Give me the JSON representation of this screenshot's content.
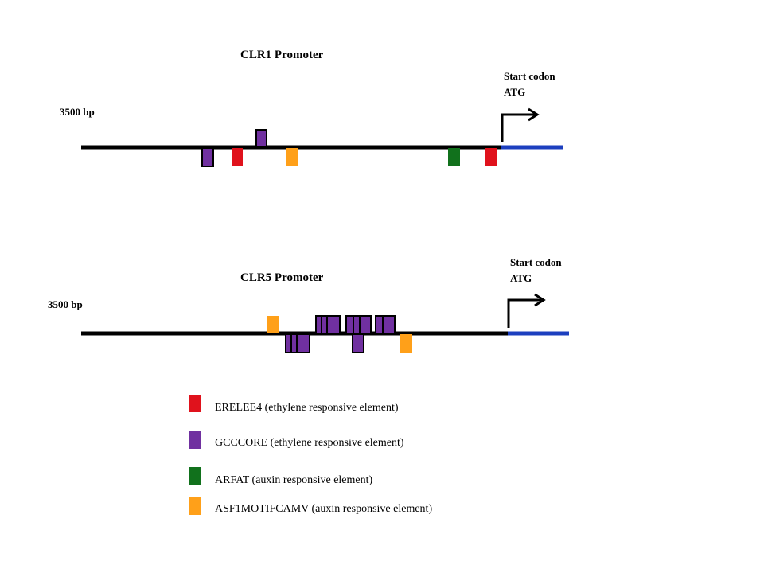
{
  "colors": {
    "line": "#000000",
    "gene": "#1c3fbf",
    "ERELEE4": "#e0121c",
    "GCCCORE": "#7030a0",
    "ARFAT": "#11711c",
    "ASF1MOTIFCAMV": "#ffa019"
  },
  "clr1": {
    "title": "CLR1 Promoter",
    "length_label": "3500 bp",
    "start_codon_label": "Start codon",
    "atg_label": "ATG"
  },
  "clr5": {
    "title": "CLR5 Promoter",
    "length_label": "3500 bp",
    "start_codon_label": "Start codon",
    "atg_label": "ATG"
  },
  "legend": [
    {
      "key": "ERELEE4",
      "label": "ERELEE4 (ethylene responsive element)"
    },
    {
      "key": "GCCCORE",
      "label": "GCCCORE (ethylene responsive element)"
    },
    {
      "key": "ARFAT",
      "label": "ARFAT (auxin responsive element)"
    },
    {
      "key": "ASF1MOTIFCAMV",
      "label": "ASF1MOTIFCAMV (auxin responsive element)"
    }
  ]
}
